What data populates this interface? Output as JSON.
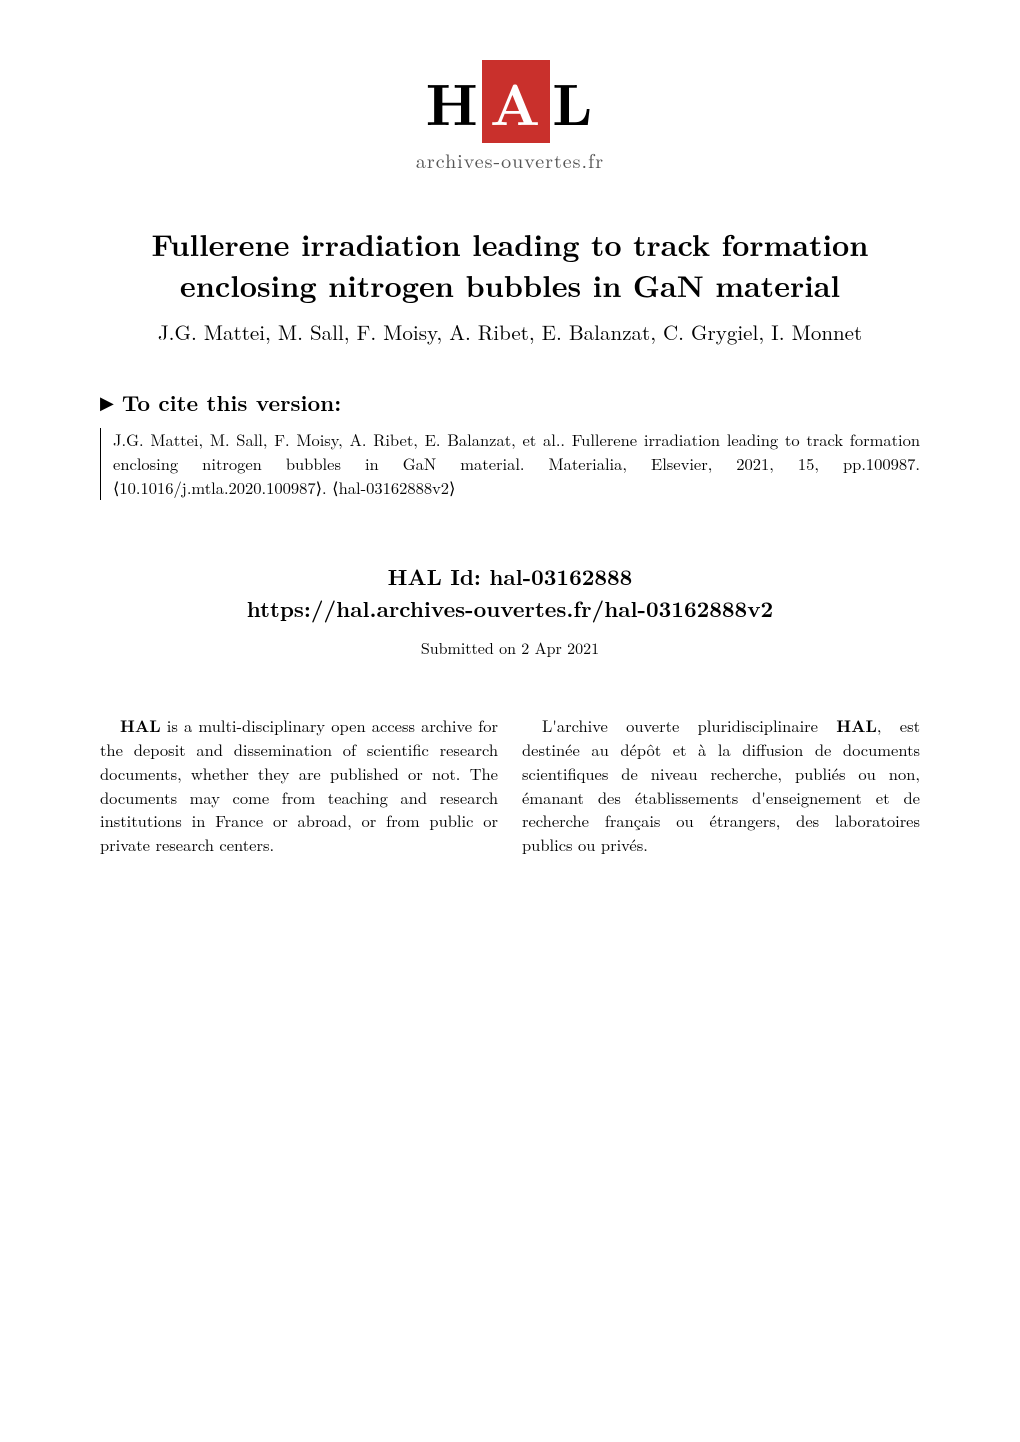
{
  "logo": {
    "prefix": "H",
    "highlighted": "A",
    "suffix": "L",
    "subtitle": "archives-ouvertes.fr"
  },
  "title": {
    "line1": "Fullerene irradiation leading to track formation",
    "line2": "enclosing nitrogen bubbles in GaN material"
  },
  "authors": "J.G. Mattei, M. Sall, F. Moisy, A. Ribet, E. Balanzat, C. Grygiel, I. Monnet",
  "cite": {
    "header": "To cite this version:",
    "body": "J.G. Mattei, M. Sall, F. Moisy, A. Ribet, E. Balanzat, et al.. Fullerene irradiation leading to track formation enclosing nitrogen bubbles in GaN material. Materialia, Elsevier, 2021, 15, pp.100987. ⟨10.1016/j.mtla.2020.100987⟩. ⟨hal-03162888v2⟩"
  },
  "hal": {
    "id_label": "HAL Id: hal-03162888",
    "url": "https://hal.archives-ouvertes.fr/hal-03162888v2",
    "submitted": "Submitted on 2 Apr 2021"
  },
  "description": {
    "left_bold": "HAL",
    "left_text": " is a multi-disciplinary open access archive for the deposit and dissemination of scientific research documents, whether they are published or not. The documents may come from teaching and research institutions in France or abroad, or from public or private research centers.",
    "right_prefix": "L'archive ouverte pluridisciplinaire ",
    "right_bold": "HAL",
    "right_text": ", est destinée au dépôt et à la diffusion de documents scientifiques de niveau recherche, publiés ou non, émanant des établissements d'enseignement et de recherche français ou étrangers, des laboratoires publics ou privés."
  },
  "colors": {
    "logo_accent": "#c9302c",
    "text": "#000000",
    "subtitle": "#555555",
    "background": "#ffffff"
  },
  "typography": {
    "title_fontsize": 30,
    "authors_fontsize": 21,
    "cite_title_fontsize": 22,
    "cite_body_fontsize": 16.5,
    "hal_id_fontsize": 22,
    "submitted_fontsize": 16,
    "description_fontsize": 16.5
  }
}
